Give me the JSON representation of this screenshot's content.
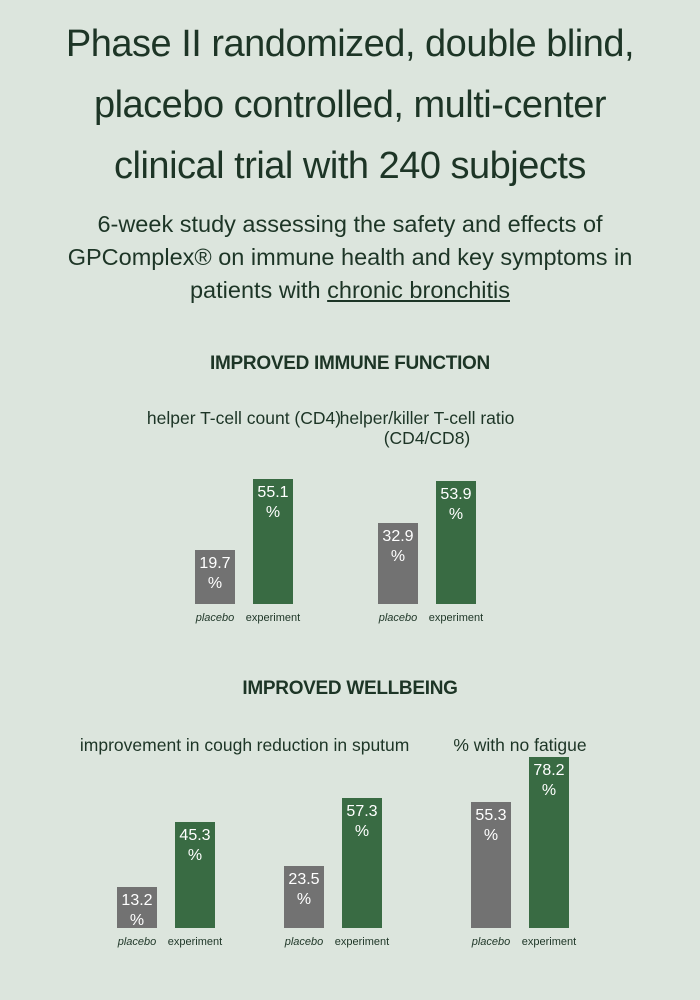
{
  "header": {
    "title_lines": [
      "Phase II randomized, double blind,",
      "placebo controlled, multi-center",
      "clinical trial with 240 subjects"
    ],
    "subtitle_lines": [
      "6-week study assessing the safety and effects of",
      "GPComplex® on immune health and key symptoms in",
      "patients with "
    ],
    "subtitle_link": "chronic bronchitis"
  },
  "sections": [
    {
      "title": "IMPROVED IMMUNE FUNCTION"
    },
    {
      "title": "IMPROVED WELLBEING"
    }
  ],
  "colors": {
    "placebo": "#727272",
    "experiment": "#396b43",
    "background": "#dce5dd",
    "text": "#1d3526"
  },
  "chart_data": [
    {
      "type": "bar",
      "section": "IMPROVED IMMUNE FUNCTION",
      "title": "helper T-cell count (CD4)",
      "categories": [
        "placebo",
        "experiment"
      ],
      "values": [
        19.7,
        55.1
      ],
      "labels": [
        "19.7\n%",
        "55.1\n%"
      ]
    },
    {
      "type": "bar",
      "section": "IMPROVED IMMUNE FUNCTION",
      "title": "helper/killer T-cell ratio (CD4/CD8)",
      "categories": [
        "placebo",
        "experiment"
      ],
      "values": [
        32.9,
        53.9
      ],
      "labels": [
        "32.9\n%",
        "53.9\n%"
      ]
    },
    {
      "type": "bar",
      "section": "IMPROVED WELLBEING",
      "title": "improvement in cough",
      "categories": [
        "placebo",
        "experiment"
      ],
      "values": [
        13.2,
        45.3
      ],
      "labels": [
        "13.2\n%",
        "45.3\n%"
      ]
    },
    {
      "type": "bar",
      "section": "IMPROVED WELLBEING",
      "title": "reduction in sputum",
      "categories": [
        "placebo",
        "experiment"
      ],
      "values": [
        23.5,
        57.3
      ],
      "labels": [
        "23.5\n%",
        "57.3\n%"
      ]
    },
    {
      "type": "bar",
      "section": "IMPROVED WELLBEING",
      "title": "% with no fatigue",
      "categories": [
        "placebo",
        "experiment"
      ],
      "values": [
        55.3,
        78.2
      ],
      "labels": [
        "55.3\n%",
        "78.2\n%"
      ]
    }
  ]
}
